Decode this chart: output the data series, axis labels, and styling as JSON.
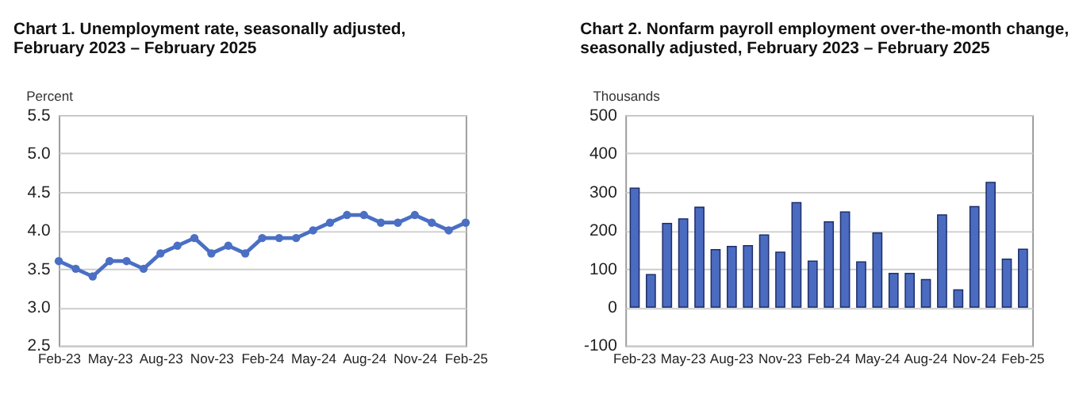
{
  "chart_data": [
    {
      "type": "line",
      "title": "Chart 1. Unemployment rate, seasonally adjusted, February 2023 – February 2025",
      "ylabel": "Percent",
      "categories": [
        "Feb-23",
        null,
        null,
        "May-23",
        null,
        null,
        "Aug-23",
        null,
        null,
        "Nov-23",
        null,
        null,
        "Feb-24",
        null,
        null,
        "May-24",
        null,
        null,
        "Aug-24",
        null,
        null,
        "Nov-24",
        null,
        null,
        "Feb-25"
      ],
      "series": [
        {
          "color": "#4a6fc4",
          "values": [
            3.6,
            3.5,
            3.4,
            3.6,
            3.6,
            3.5,
            3.7,
            3.8,
            3.9,
            3.7,
            3.8,
            3.7,
            3.9,
            3.9,
            3.9,
            4.0,
            4.1,
            4.2,
            4.2,
            4.1,
            4.1,
            4.2,
            4.1,
            4.0,
            4.1
          ]
        }
      ],
      "ylim": [
        2.5,
        5.5
      ],
      "yticks": [
        {
          "value": 2.5,
          "label": "2.5"
        },
        {
          "value": 3,
          "label": "3.0"
        },
        {
          "value": 3.5,
          "label": "3.5"
        },
        {
          "value": 4,
          "label": "4.0"
        },
        {
          "value": 4.5,
          "label": "4.5"
        },
        {
          "value": 5,
          "label": "5.0"
        },
        {
          "value": 5.5,
          "label": "5.5"
        }
      ],
      "grid": "y",
      "marker": "circle",
      "line_style": "solid"
    },
    {
      "type": "bar",
      "title": "Chart 2. Nonfarm payroll employment over-the-month change, seasonally adjusted, February 2023 – February 2025",
      "ylabel": "Thousands",
      "categories": [
        "Feb-23",
        null,
        null,
        "May-23",
        null,
        null,
        "Aug-23",
        null,
        null,
        "Nov-23",
        null,
        null,
        "Feb-24",
        null,
        null,
        "May-24",
        null,
        null,
        "Aug-24",
        null,
        null,
        "Nov-24",
        null,
        null,
        "Feb-25"
      ],
      "series": [
        {
          "color": "#4a6bc0",
          "values": [
            310,
            85,
            218,
            230,
            260,
            150,
            158,
            160,
            188,
            143,
            272,
            120,
            222,
            248,
            118,
            193,
            88,
            88,
            72,
            240,
            45,
            262,
            325,
            125,
            151
          ]
        }
      ],
      "ylim": [
        -100,
        500
      ],
      "yticks": [
        -100,
        0,
        100,
        200,
        300,
        400,
        500
      ],
      "grid": "y"
    }
  ]
}
